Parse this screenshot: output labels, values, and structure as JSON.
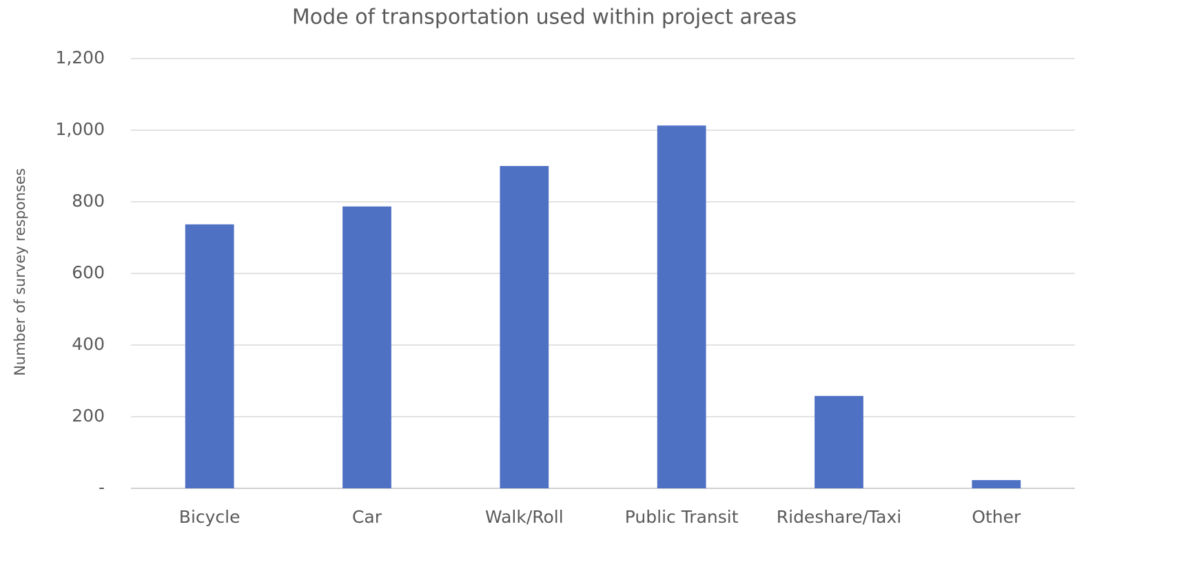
{
  "chart_data": {
    "type": "bar",
    "title": "Mode of transportation used within project areas",
    "y_label": "Number of survey responses",
    "categories": [
      "Bicycle",
      "Car",
      "Walk/Roll",
      "Public Transit",
      "Rideshare/Taxi",
      "Other"
    ],
    "values": [
      737,
      787,
      900,
      1013,
      258,
      23
    ],
    "color": "#4f71c4",
    "ylim": [
      0,
      1200
    ],
    "yticks": [
      {
        "value": 0,
        "label": "-"
      },
      200,
      400,
      600,
      800,
      {
        "value": 1000,
        "label": "1,000"
      },
      {
        "value": 1200,
        "label": "1,200"
      }
    ],
    "grid": true
  }
}
